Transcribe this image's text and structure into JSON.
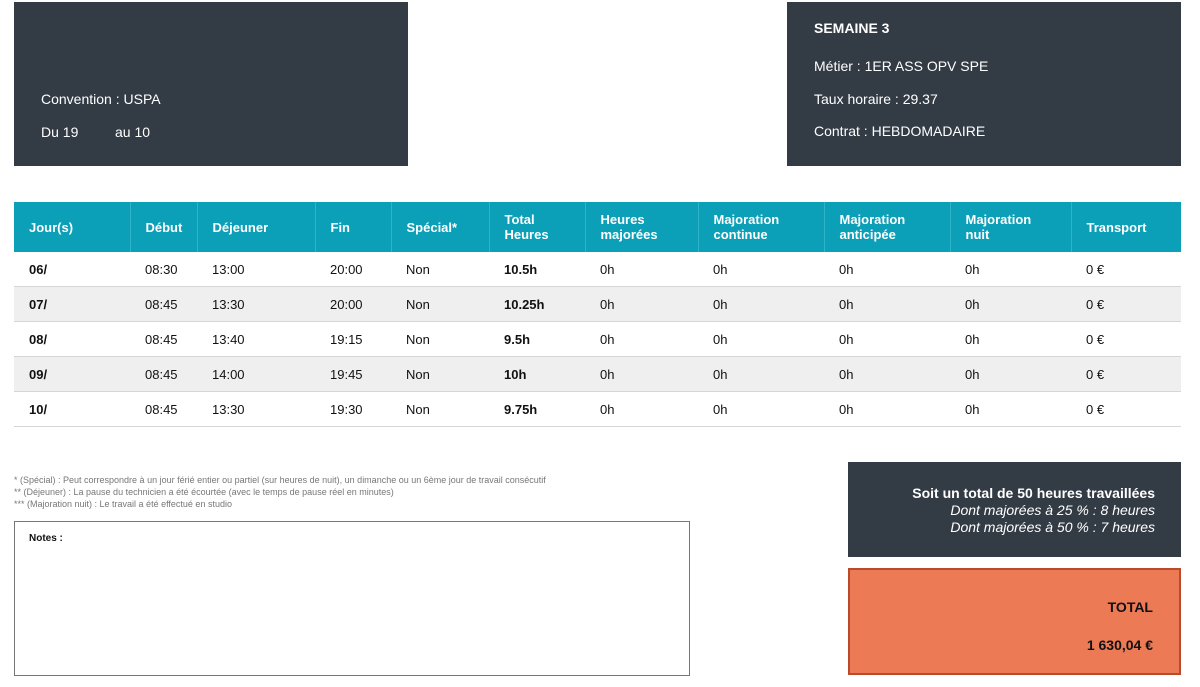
{
  "left_header": {
    "convention": "Convention : USPA",
    "period_from": "Du 19",
    "period_to": "au 10"
  },
  "right_header": {
    "week": "SEMAINE 3",
    "metier": "Métier : 1ER ASS OPV SPE",
    "taux": "Taux horaire : 29.37",
    "contrat": "Contrat : HEBDOMADAIRE"
  },
  "table": {
    "headers": [
      "Jour(s)",
      "Début",
      "Déjeuner",
      "Fin",
      "Spécial*",
      "Total\nHeures",
      "Heures\nmajorées",
      "Majoration\ncontinue",
      "Majoration\nanticipée",
      "Majoration\nnuit",
      "Transport"
    ],
    "rows": [
      {
        "day": "06/",
        "debut": "08:30",
        "dejeuner": "13:00",
        "fin": "20:00",
        "special": "Non",
        "total": "10.5h",
        "majorees": "0h",
        "continue": "0h",
        "anticipee": "0h",
        "nuit": "0h",
        "transport": "0 €"
      },
      {
        "day": "07/",
        "debut": "08:45",
        "dejeuner": "13:30",
        "fin": "20:00",
        "special": "Non",
        "total": "10.25h",
        "majorees": "0h",
        "continue": "0h",
        "anticipee": "0h",
        "nuit": "0h",
        "transport": "0 €"
      },
      {
        "day": "08/",
        "debut": "08:45",
        "dejeuner": "13:40",
        "fin": "19:15",
        "special": "Non",
        "total": "9.5h",
        "majorees": "0h",
        "continue": "0h",
        "anticipee": "0h",
        "nuit": "0h",
        "transport": "0 €"
      },
      {
        "day": "09/",
        "debut": "08:45",
        "dejeuner": "14:00",
        "fin": "19:45",
        "special": "Non",
        "total": "10h",
        "majorees": "0h",
        "continue": "0h",
        "anticipee": "0h",
        "nuit": "0h",
        "transport": "0 €"
      },
      {
        "day": "10/",
        "debut": "08:45",
        "dejeuner": "13:30",
        "fin": "19:30",
        "special": "Non",
        "total": "9.75h",
        "majorees": "0h",
        "continue": "0h",
        "anticipee": "0h",
        "nuit": "0h",
        "transport": "0 €"
      }
    ]
  },
  "footnotes": [
    "* (Spécial) : Peut correspondre à un jour férié entier ou partiel (sur heures de nuit), un dimanche ou un 6ème jour de travail consécutif",
    "** (Déjeuner) : La pause du technicien a été écourtée (avec le temps de pause réel en minutes)",
    "*** (Majoration nuit) : Le travail a été effectué en studio"
  ],
  "notes": {
    "label": "Notes :"
  },
  "summary": {
    "main": "Soit un total de 50 heures travaillées",
    "line1": "Dont majorées à 25 % : 8 heures",
    "line2": "Dont majorées à 50 % : 7 heures"
  },
  "total": {
    "label": "TOTAL",
    "amount": "1 630,04 €"
  },
  "colors": {
    "header_dark": "#333b45",
    "table_header": "#0c9fb8",
    "total_box": "#ec7a55"
  }
}
